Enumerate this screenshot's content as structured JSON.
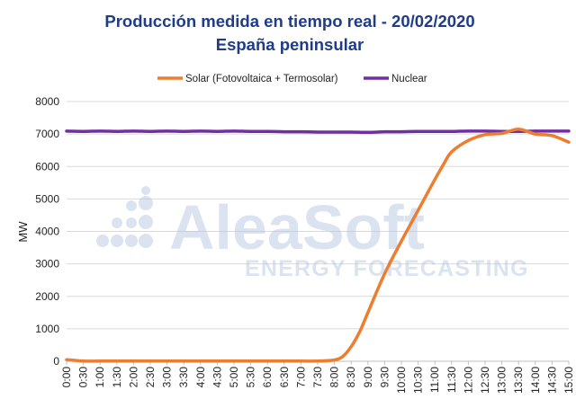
{
  "chart_data": {
    "type": "line",
    "title": "Producción medida en tiempo real - 20/02/2020",
    "subtitle": "España peninsular",
    "ylabel": "MW",
    "xlabel": "",
    "ylim": [
      0,
      8000
    ],
    "yticks": [
      0,
      1000,
      2000,
      3000,
      4000,
      5000,
      6000,
      7000,
      8000
    ],
    "grid": true,
    "legend_position": "top",
    "categories": [
      "0:00",
      "0:30",
      "1:00",
      "1:30",
      "2:00",
      "2:30",
      "3:00",
      "3:30",
      "4:00",
      "4:30",
      "5:00",
      "5:30",
      "6:00",
      "6:30",
      "7:00",
      "7:30",
      "8:00",
      "8:30",
      "9:00",
      "9:30",
      "10:00",
      "10:30",
      "11:00",
      "11:30",
      "12:00",
      "12:30",
      "13:00",
      "13:30",
      "14:00",
      "14:30",
      "15:00"
    ],
    "series": [
      {
        "name": "Solar (Fotovoltaica + Termosolar)",
        "color": "#ed7d31",
        "x": [
          "0:00",
          "0:30",
          "1:00",
          "1:30",
          "2:00",
          "2:30",
          "3:00",
          "3:30",
          "4:00",
          "4:30",
          "5:00",
          "5:30",
          "6:00",
          "6:30",
          "7:00",
          "7:30",
          "8:00",
          "8:15",
          "8:30",
          "8:45",
          "9:00",
          "9:30",
          "10:00",
          "10:30",
          "11:00",
          "11:15",
          "11:30",
          "12:00",
          "12:30",
          "13:00",
          "13:30",
          "14:00",
          "14:30",
          "15:00"
        ],
        "values": [
          50,
          5,
          5,
          5,
          5,
          5,
          5,
          5,
          5,
          5,
          5,
          5,
          5,
          5,
          5,
          5,
          40,
          150,
          450,
          900,
          1500,
          2700,
          3700,
          4650,
          5600,
          6050,
          6450,
          6800,
          6980,
          7020,
          7150,
          7000,
          6950,
          6750
        ]
      },
      {
        "name": "Nuclear",
        "color": "#7030a0",
        "x": [
          "0:00",
          "0:30",
          "1:00",
          "1:30",
          "2:00",
          "2:30",
          "3:00",
          "3:30",
          "4:00",
          "4:30",
          "5:00",
          "5:30",
          "6:00",
          "6:30",
          "7:00",
          "7:30",
          "8:00",
          "8:30",
          "9:00",
          "9:30",
          "10:00",
          "10:30",
          "11:00",
          "11:30",
          "12:00",
          "12:30",
          "13:00",
          "13:30",
          "14:00",
          "14:30",
          "15:00"
        ],
        "values": [
          7090,
          7080,
          7090,
          7080,
          7090,
          7080,
          7090,
          7080,
          7090,
          7080,
          7090,
          7080,
          7080,
          7070,
          7070,
          7060,
          7060,
          7060,
          7050,
          7070,
          7070,
          7080,
          7080,
          7080,
          7090,
          7090,
          7080,
          7080,
          7090,
          7090,
          7090
        ]
      }
    ]
  },
  "watermark": {
    "brand": "AleaSoft",
    "tagline": "ENERGY FORECASTING"
  }
}
